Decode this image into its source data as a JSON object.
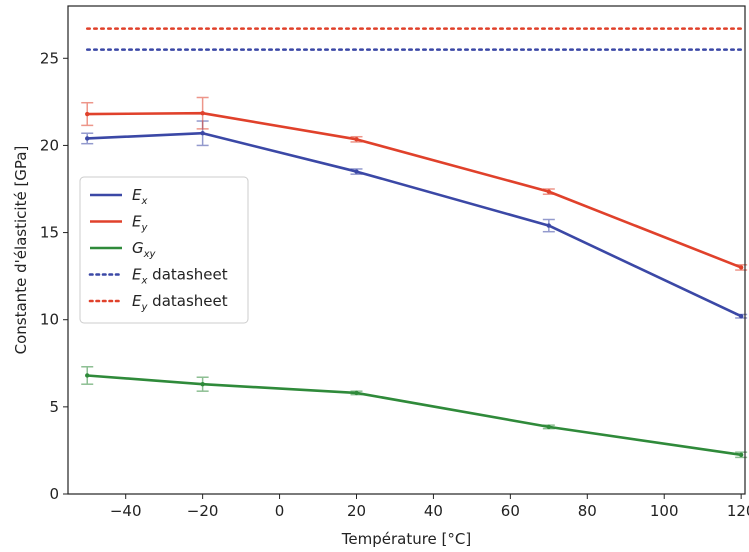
{
  "chart_data": {
    "type": "line",
    "title": "",
    "xlabel": "Température [°C]",
    "ylabel": "Constante d'élasticité [GPa]",
    "xlim": [
      -55,
      121
    ],
    "ylim": [
      0,
      28
    ],
    "x_ticks": [
      -40,
      -20,
      0,
      20,
      40,
      60,
      80,
      100,
      120
    ],
    "y_ticks": [
      0,
      5,
      10,
      15,
      20,
      25
    ],
    "grid": false,
    "legend_position": "center-left",
    "x": [
      -50,
      -20,
      20,
      70,
      120
    ],
    "series": [
      {
        "name": "E_x",
        "label_main": "E",
        "label_sub": "x",
        "style": "solid",
        "color": "#3b48a6",
        "values": [
          20.4,
          20.7,
          18.5,
          15.4,
          10.2
        ],
        "errors": [
          0.3,
          0.7,
          0.15,
          0.35,
          0.1
        ]
      },
      {
        "name": "E_y",
        "label_main": "E",
        "label_sub": "y",
        "style": "solid",
        "color": "#e0412b",
        "values": [
          21.8,
          21.85,
          20.35,
          17.35,
          13.0
        ],
        "errors": [
          0.65,
          0.9,
          0.15,
          0.15,
          0.15
        ]
      },
      {
        "name": "G_xy",
        "label_main": "G",
        "label_sub": "xy",
        "style": "solid",
        "color": "#2f8a3a",
        "values": [
          6.8,
          6.3,
          5.8,
          3.85,
          2.25
        ],
        "errors": [
          0.5,
          0.4,
          0.1,
          0.1,
          0.15
        ]
      },
      {
        "name": "E_x datasheet",
        "label_main": "E",
        "label_sub": "x",
        "label_suffix": " datasheet",
        "style": "dotted",
        "color": "#3b48a6",
        "x_range": [
          -50,
          120
        ],
        "constant": 25.5
      },
      {
        "name": "E_y datasheet",
        "label_main": "E",
        "label_sub": "y",
        "label_suffix": " datasheet",
        "style": "dotted",
        "color": "#e0412b",
        "x_range": [
          -50,
          120
        ],
        "constant": 26.7
      }
    ]
  }
}
